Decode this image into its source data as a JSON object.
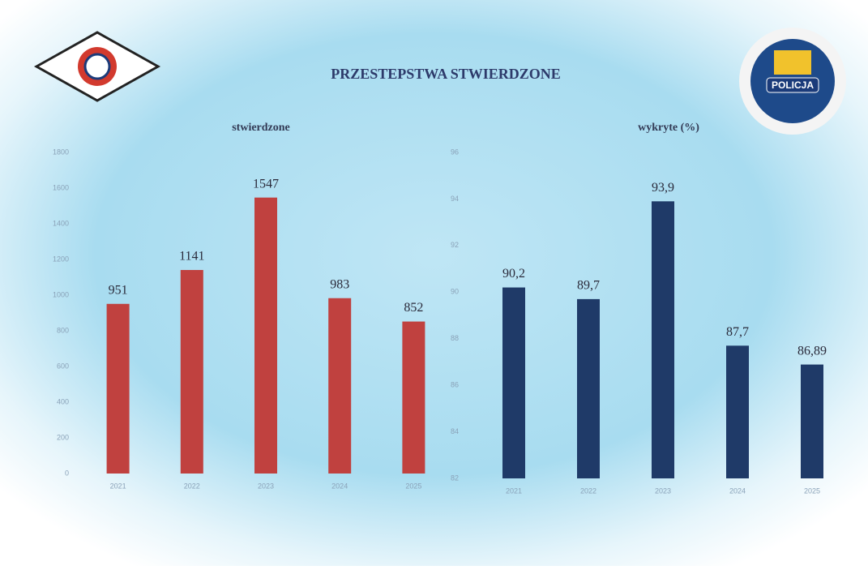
{
  "title": "PRZESTEPSTWA STWIERDZONE",
  "logo_text": "POLICJA",
  "chart_data": [
    {
      "type": "bar",
      "title": "stwierdzone",
      "categories": [
        "2021",
        "2022",
        "2023",
        "2024",
        "2025"
      ],
      "values": [
        951,
        1141,
        1547,
        983,
        852
      ],
      "color": "#c0413f",
      "ylim": [
        0,
        1800
      ],
      "yticks": [
        0,
        200,
        400,
        600,
        800,
        1000,
        1200,
        1400,
        1600,
        1800
      ]
    },
    {
      "type": "bar",
      "title": "wykryte (%)",
      "categories": [
        "2021",
        "2022",
        "2023",
        "2024",
        "2025"
      ],
      "values": [
        90.2,
        89.7,
        93.9,
        87.7,
        86.89
      ],
      "value_labels": [
        "90,2",
        "89,7",
        "93,9",
        "87,7",
        "86,89"
      ],
      "color": "#1f3a68",
      "ylim": [
        82,
        96
      ],
      "yticks": [
        82,
        84,
        86,
        88,
        90,
        92,
        94,
        96
      ]
    }
  ]
}
